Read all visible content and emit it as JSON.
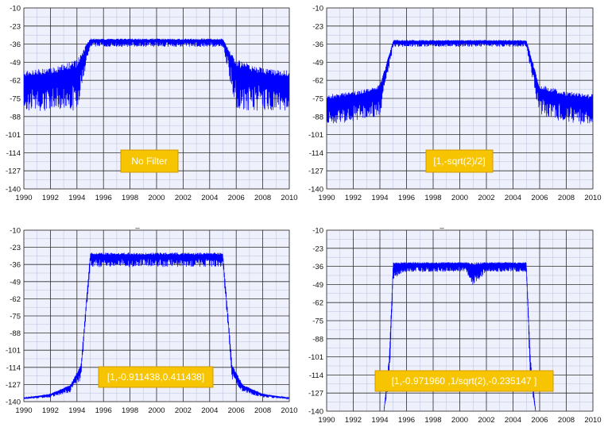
{
  "chart_data": [
    {
      "type": "line",
      "title": "",
      "xlabel": "",
      "ylabel": "",
      "xlim": [
        1990,
        2010
      ],
      "ylim": [
        -140,
        -10
      ],
      "x_ticks": [
        1990,
        1992,
        1994,
        1996,
        1998,
        2000,
        2002,
        2004,
        2006,
        2008,
        2010
      ],
      "y_ticks": [
        -10,
        -23,
        -36,
        -49,
        -62,
        -75,
        -88,
        -101,
        -114,
        -127,
        -140
      ],
      "grid": true,
      "annotation": "No Filter",
      "series": [
        {
          "color": "#0000ff",
          "envelope_upper": [
            [
              1990,
              -55
            ],
            [
              1992,
              -53
            ],
            [
              1994,
              -47
            ],
            [
              1995,
              -32
            ],
            [
              2005,
              -32
            ],
            [
              2006,
              -47
            ],
            [
              2008,
              -53
            ],
            [
              2010,
              -55
            ]
          ],
          "envelope_lower": [
            [
              1990,
              -84
            ],
            [
              1992,
              -84
            ],
            [
              1994,
              -84
            ],
            [
              1995,
              -38
            ],
            [
              2005,
              -38
            ],
            [
              2006,
              -84
            ],
            [
              2008,
              -84
            ],
            [
              2010,
              -84
            ]
          ]
        }
      ]
    },
    {
      "type": "line",
      "title": "",
      "xlabel": "",
      "ylabel": "",
      "xlim": [
        1990,
        2010
      ],
      "ylim": [
        -140,
        -10
      ],
      "x_ticks": [
        1990,
        1992,
        1994,
        1996,
        1998,
        2000,
        2002,
        2004,
        2006,
        2008,
        2010
      ],
      "y_ticks": [
        -10,
        -23,
        -36,
        -49,
        -62,
        -75,
        -88,
        -101,
        -114,
        -127,
        -140
      ],
      "grid": true,
      "annotation": "[1,-sqrt(2)/2]",
      "series": [
        {
          "color": "#0000ff",
          "envelope_upper": [
            [
              1990,
              -72
            ],
            [
              1992,
              -70
            ],
            [
              1994,
              -65
            ],
            [
              1995,
              -33
            ],
            [
              2005,
              -33
            ],
            [
              2006,
              -65
            ],
            [
              2008,
              -70
            ],
            [
              2010,
              -72
            ]
          ],
          "envelope_lower": [
            [
              1990,
              -95
            ],
            [
              1992,
              -92
            ],
            [
              1994,
              -88
            ],
            [
              1995,
              -38
            ],
            [
              2005,
              -38
            ],
            [
              2006,
              -88
            ],
            [
              2008,
              -92
            ],
            [
              2010,
              -95
            ]
          ]
        }
      ]
    },
    {
      "type": "line",
      "title": "_",
      "xlabel": "",
      "ylabel": "",
      "xlim": [
        1990,
        2010
      ],
      "ylim": [
        -140,
        -10
      ],
      "x_ticks": [
        1990,
        1992,
        1994,
        1996,
        1998,
        2000,
        2002,
        2004,
        2006,
        2008,
        2010
      ],
      "y_ticks": [
        -10,
        -23,
        -36,
        -49,
        -62,
        -75,
        -88,
        -101,
        -114,
        -127,
        -140
      ],
      "grid": true,
      "annotation": "[1,-0.911438,0.411438]",
      "series": [
        {
          "color": "#0000ff",
          "envelope_upper": [
            [
              1990,
              -137
            ],
            [
              1992,
              -134
            ],
            [
              1993.5,
              -127
            ],
            [
              1994.3,
              -112
            ],
            [
              1995,
              -27
            ],
            [
              2005,
              -27
            ],
            [
              2005.7,
              -112
            ],
            [
              2006.5,
              -127
            ],
            [
              2008,
              -134
            ],
            [
              2010,
              -137
            ]
          ],
          "envelope_lower": [
            [
              1990,
              -138
            ],
            [
              1992,
              -137
            ],
            [
              1993.5,
              -133
            ],
            [
              1994.3,
              -124
            ],
            [
              1995,
              -38
            ],
            [
              2005,
              -38
            ],
            [
              2005.7,
              -124
            ],
            [
              2006.5,
              -133
            ],
            [
              2008,
              -137
            ],
            [
              2010,
              -138
            ]
          ]
        }
      ]
    },
    {
      "type": "line",
      "title": "_",
      "xlabel": "",
      "ylabel": "",
      "xlim": [
        1990,
        2010
      ],
      "ylim": [
        -140,
        -10
      ],
      "x_ticks": [
        1990,
        1992,
        1994,
        1996,
        1998,
        2000,
        2002,
        2004,
        2006,
        2008,
        2010
      ],
      "y_ticks": [
        -10,
        -23,
        -36,
        -49,
        -62,
        -75,
        -88,
        -101,
        -114,
        -127,
        -140
      ],
      "grid": true,
      "annotation": "[1,-0.971960 ,1/sqrt(2),-0.235147 ]",
      "series": [
        {
          "color": "#0000ff",
          "envelope_upper": [
            [
              1994.3,
              -140
            ],
            [
              1994.7,
              -100
            ],
            [
              1995,
              -33
            ],
            [
              2005,
              -33
            ],
            [
              2005.3,
              -100
            ],
            [
              2005.7,
              -140
            ]
          ],
          "envelope_lower": [
            [
              1994.3,
              -140
            ],
            [
              1994.7,
              -120
            ],
            [
              1995,
              -45
            ],
            [
              1996,
              -40
            ],
            [
              2000.5,
              -40
            ],
            [
              2001,
              -50
            ],
            [
              2002,
              -40
            ],
            [
              2005,
              -40
            ],
            [
              2005.3,
              -120
            ],
            [
              2005.7,
              -140
            ]
          ]
        }
      ]
    }
  ]
}
